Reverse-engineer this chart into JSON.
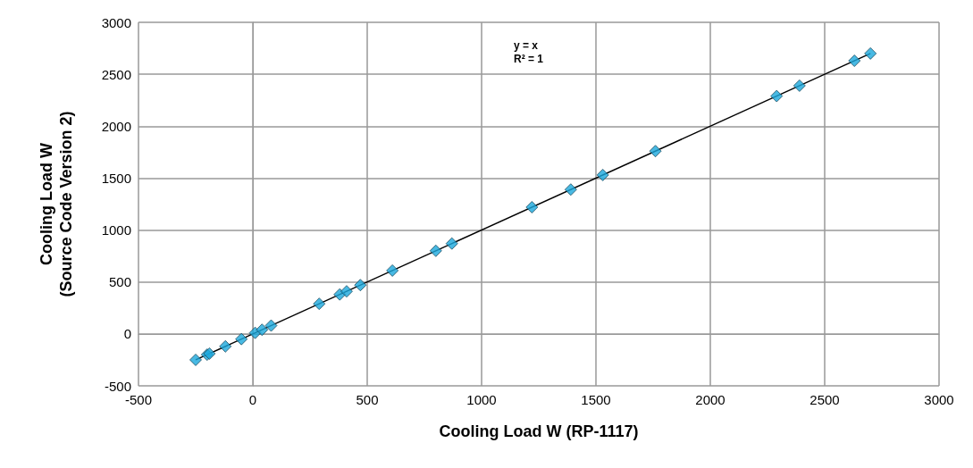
{
  "chart_data": {
    "type": "scatter",
    "xlabel": "Cooling Load W (RP-1117)",
    "ylabel": "Cooling Load W\n(Source Code Version 2)",
    "x": [
      -250,
      -200,
      -190,
      -120,
      -50,
      10,
      40,
      80,
      290,
      380,
      410,
      470,
      610,
      800,
      870,
      1220,
      1390,
      1530,
      1760,
      2290,
      2390,
      2630,
      2700
    ],
    "series": [
      {
        "color": "#1aa7dc",
        "marker": "diamond",
        "values": [
          -250,
          -200,
          -190,
          -120,
          -50,
          10,
          40,
          80,
          290,
          380,
          410,
          470,
          610,
          800,
          870,
          1220,
          1390,
          1530,
          1760,
          2290,
          2390,
          2630,
          2700
        ]
      },
      {
        "type": "line",
        "color": "#000000",
        "x": [
          -250,
          2700
        ],
        "values": [
          -250,
          2700
        ],
        "line_style": "solid",
        "marker": "none"
      }
    ],
    "annotations": [
      "y = x",
      "R² = 1"
    ],
    "xlim": [
      -500,
      3000
    ],
    "xticks": [
      -500,
      0,
      500,
      1000,
      1500,
      2000,
      2500,
      3000
    ],
    "ylim": [
      -500,
      3000
    ],
    "yticks": [
      -500,
      0,
      500,
      1000,
      1500,
      2000,
      2500,
      3000
    ],
    "grid": true
  }
}
